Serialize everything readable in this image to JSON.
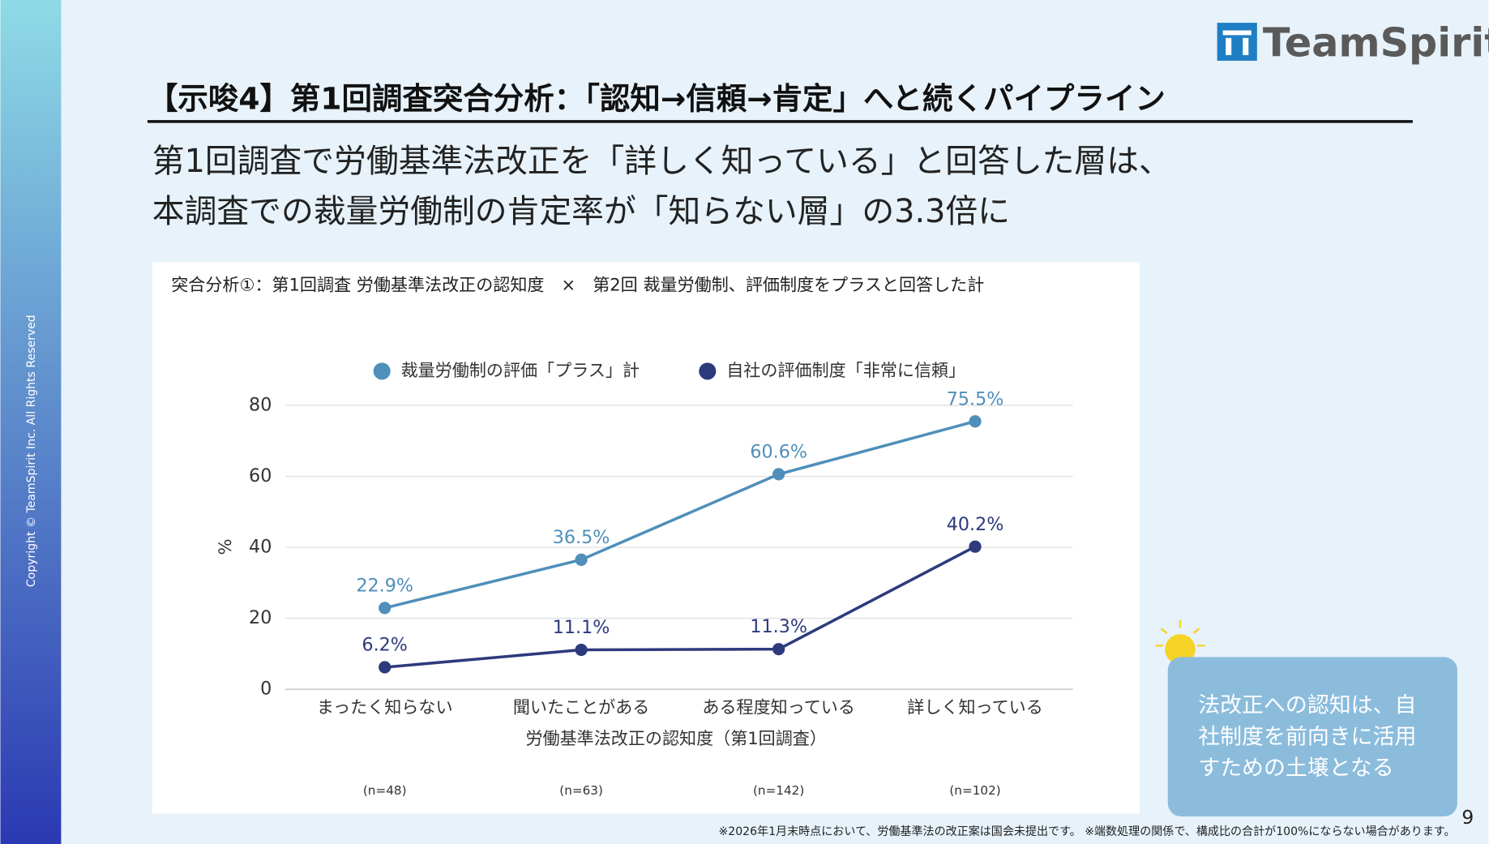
{
  "slide": {
    "copyright": "Copyright © TeamSpirit Inc. All Rights Reserved",
    "logo": "TeamSpirit",
    "title": "【示唆4】第1回調査突合分析：「認知→信頼→肯定」へと続くパイプライン",
    "headline": [
      "第1回調査で労働基準法改正を「詳しく知っている」と回答した層は、",
      "本調査での裁量労働制の肯定率が「知らない層」の3.3倍に"
    ],
    "callout": [
      "法改正への認知は、自",
      "社制度を前向きに活用",
      "すための土壌となる"
    ],
    "page_number": 9,
    "footnote": "※2026年1月末時点において、労働基準法の改正案は国会未提出です。 ※端数処理の関係で、構成比の合計が100%にならない場合があります。"
  },
  "chart_data": {
    "type": "line",
    "title": "突合分析①：第1回調査 労働基準法改正の認知度　×　第2回 裁量労働制、評価制度をプラスと回答した計",
    "categories": [
      "まったく知らない",
      "聞いたことがある",
      "ある程度知っている",
      "詳しく知っている"
    ],
    "sample_sizes": [
      "(n=48)",
      "(n=63)",
      "(n=142)",
      "(n=102)"
    ],
    "series": [
      {
        "name": "裁量労働制の評価「プラス」計",
        "color": "#4f8fba",
        "values": [
          22.9,
          36.5,
          60.6,
          75.5
        ],
        "value_labels": [
          "22.9%",
          "36.5%",
          "60.6%",
          "75.5%"
        ]
      },
      {
        "name": "自社の評価制度「非常に信頼」",
        "color": "#2d3a7c",
        "values": [
          6.2,
          11.1,
          11.3,
          40.2
        ],
        "value_labels": [
          "6.2%",
          "11.1%",
          "11.3%",
          "40.2%"
        ]
      }
    ],
    "ylim": [
      0,
      80
    ],
    "yticks": [
      0,
      20,
      40,
      60,
      80
    ],
    "ylabel": "%",
    "xlabel": "労働基準法改正の認知度（第1回調査）",
    "grid": true
  }
}
